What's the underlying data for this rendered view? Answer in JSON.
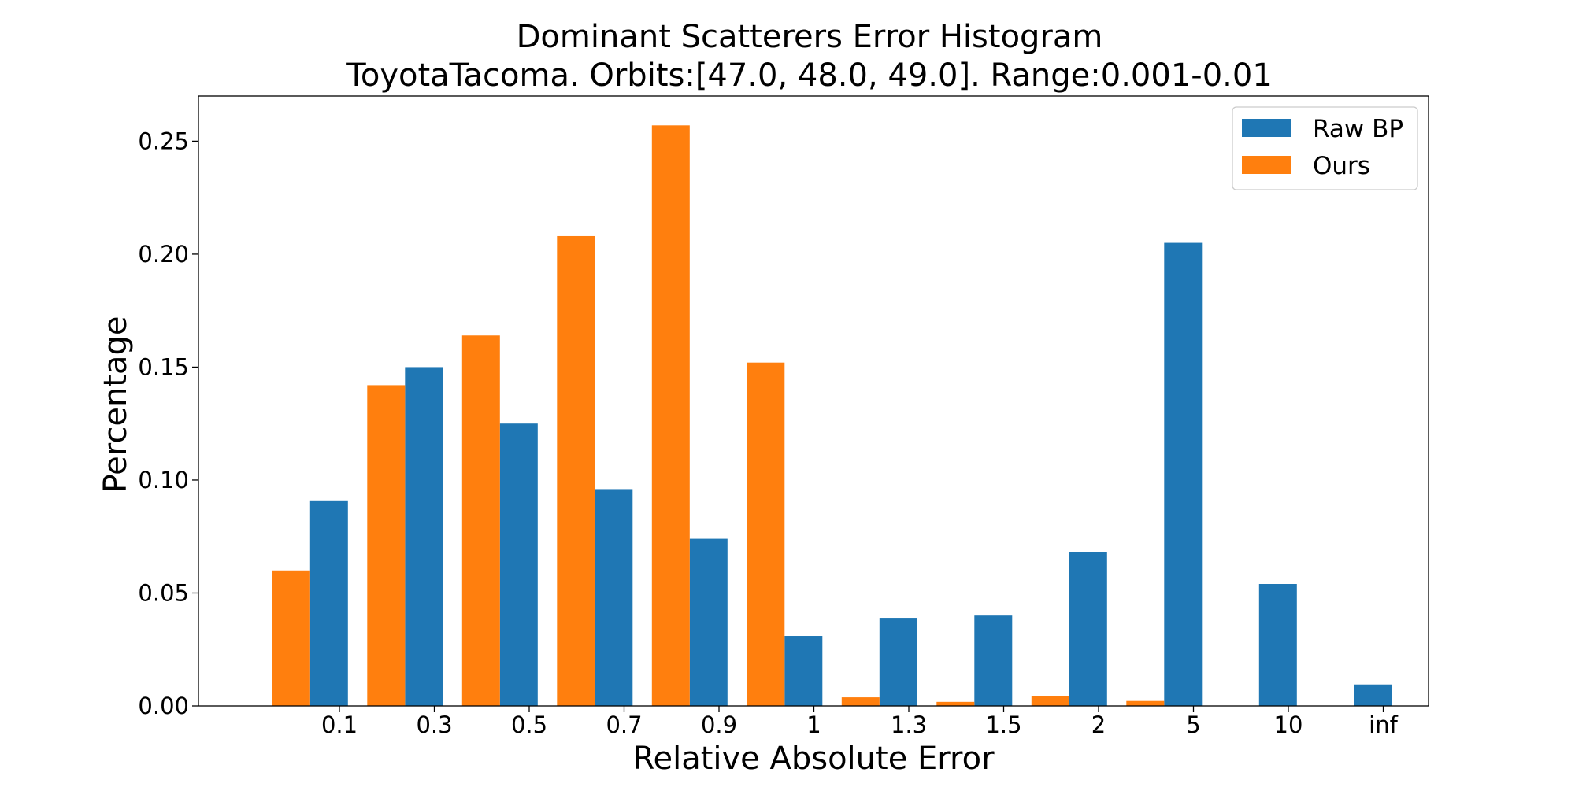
{
  "chart_data": {
    "type": "bar",
    "title": "Dominant Scatterers Error Histogram",
    "subtitle": "ToyotaTacoma. Orbits:[47.0, 48.0, 49.0]. Range:0.001-0.01",
    "xlabel": "Relative Absolute Error",
    "ylabel": "Percentage",
    "categories": [
      "0.1",
      "0.3",
      "0.5",
      "0.7",
      "0.9",
      "1",
      "1.3",
      "1.5",
      "2",
      "5",
      "10",
      "inf"
    ],
    "series": [
      {
        "name": "Raw BP",
        "color": "#1f77b4",
        "values": [
          0.091,
          0.15,
          0.125,
          0.096,
          0.074,
          0.031,
          0.039,
          0.04,
          0.068,
          0.205,
          0.054,
          0.0095
        ]
      },
      {
        "name": "Ours",
        "color": "#ff7f0e",
        "values": [
          0.06,
          0.142,
          0.164,
          0.208,
          0.257,
          0.152,
          0.0038,
          0.0018,
          0.0042,
          0.0022,
          0.0,
          0.0
        ]
      }
    ],
    "ylim": [
      0,
      0.27
    ],
    "yticks": [
      "0.00",
      "0.05",
      "0.10",
      "0.15",
      "0.20",
      "0.25"
    ],
    "grid": false,
    "legend_position": "top-right"
  }
}
